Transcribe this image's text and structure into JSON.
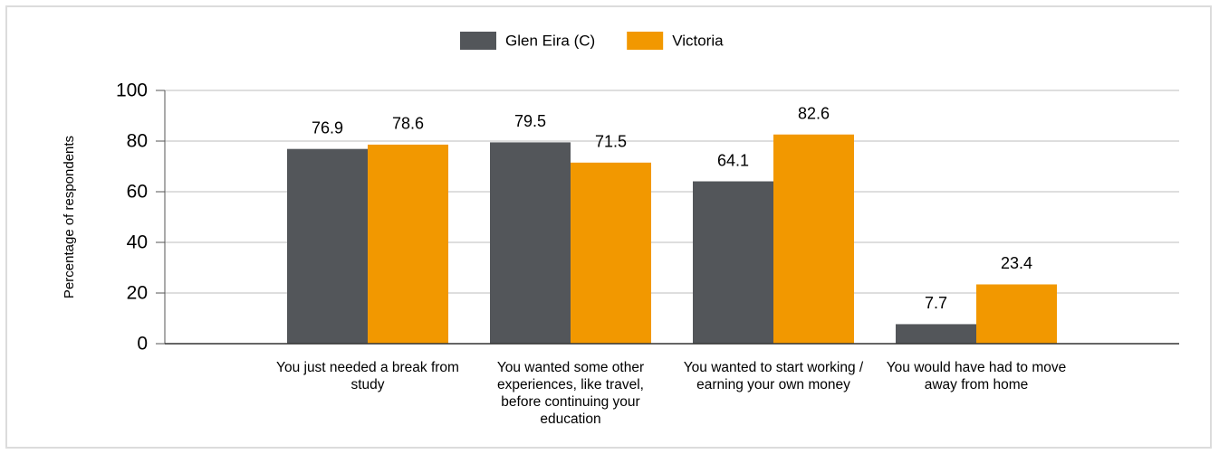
{
  "chart_data": {
    "type": "bar",
    "ylabel": "Percentage of respondents",
    "categories": [
      "You just needed a break from study",
      "You wanted some other experiences, like travel, before continuing your education",
      "You wanted to start working / earning your own money",
      "You would have had to move away from home"
    ],
    "series": [
      {
        "name": "Glen Eira (C)",
        "color": "#53565a",
        "values": [
          76.9,
          79.5,
          64.1,
          7.7
        ]
      },
      {
        "name": "Victoria",
        "color": "#f29800",
        "values": [
          78.6,
          71.5,
          82.6,
          23.4
        ]
      }
    ],
    "ylim": [
      0,
      100
    ],
    "yticks": [
      0,
      20,
      40,
      60,
      80,
      100
    ],
    "grid": true,
    "legend": "top"
  }
}
